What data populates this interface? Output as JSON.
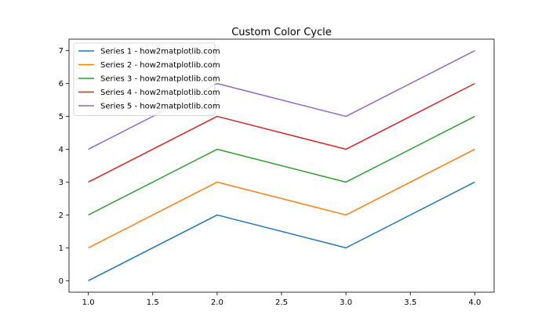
{
  "chart_data": {
    "type": "line",
    "title": "Custom Color Cycle",
    "xlabel": "",
    "ylabel": "",
    "xlim": [
      0.85,
      4.15
    ],
    "ylim": [
      -0.35,
      7.35
    ],
    "x_ticks": [
      1.0,
      1.5,
      2.0,
      2.5,
      3.0,
      3.5,
      4.0
    ],
    "x_tick_labels": [
      "1.0",
      "1.5",
      "2.0",
      "2.5",
      "3.0",
      "3.5",
      "4.0"
    ],
    "y_ticks": [
      0,
      1,
      2,
      3,
      4,
      5,
      6,
      7
    ],
    "y_tick_labels": [
      "0",
      "1",
      "2",
      "3",
      "4",
      "5",
      "6",
      "7"
    ],
    "grid": false,
    "legend_position": "top-left",
    "x": [
      1,
      2,
      3,
      4
    ],
    "series": [
      {
        "name": "Series 1 - how2matplotlib.com",
        "values": [
          0,
          2,
          1,
          3
        ],
        "color": "#1f77b4"
      },
      {
        "name": "Series 2 - how2matplotlib.com",
        "values": [
          1,
          3,
          2,
          4
        ],
        "color": "#ff7f0e"
      },
      {
        "name": "Series 3 - how2matplotlib.com",
        "values": [
          2,
          4,
          3,
          5
        ],
        "color": "#2ca02c"
      },
      {
        "name": "Series 4 - how2matplotlib.com",
        "values": [
          3,
          5,
          4,
          6
        ],
        "color": "#d62728"
      },
      {
        "name": "Series 5 - how2matplotlib.com",
        "values": [
          4,
          6,
          5,
          7
        ],
        "color": "#9467bd"
      }
    ]
  }
}
